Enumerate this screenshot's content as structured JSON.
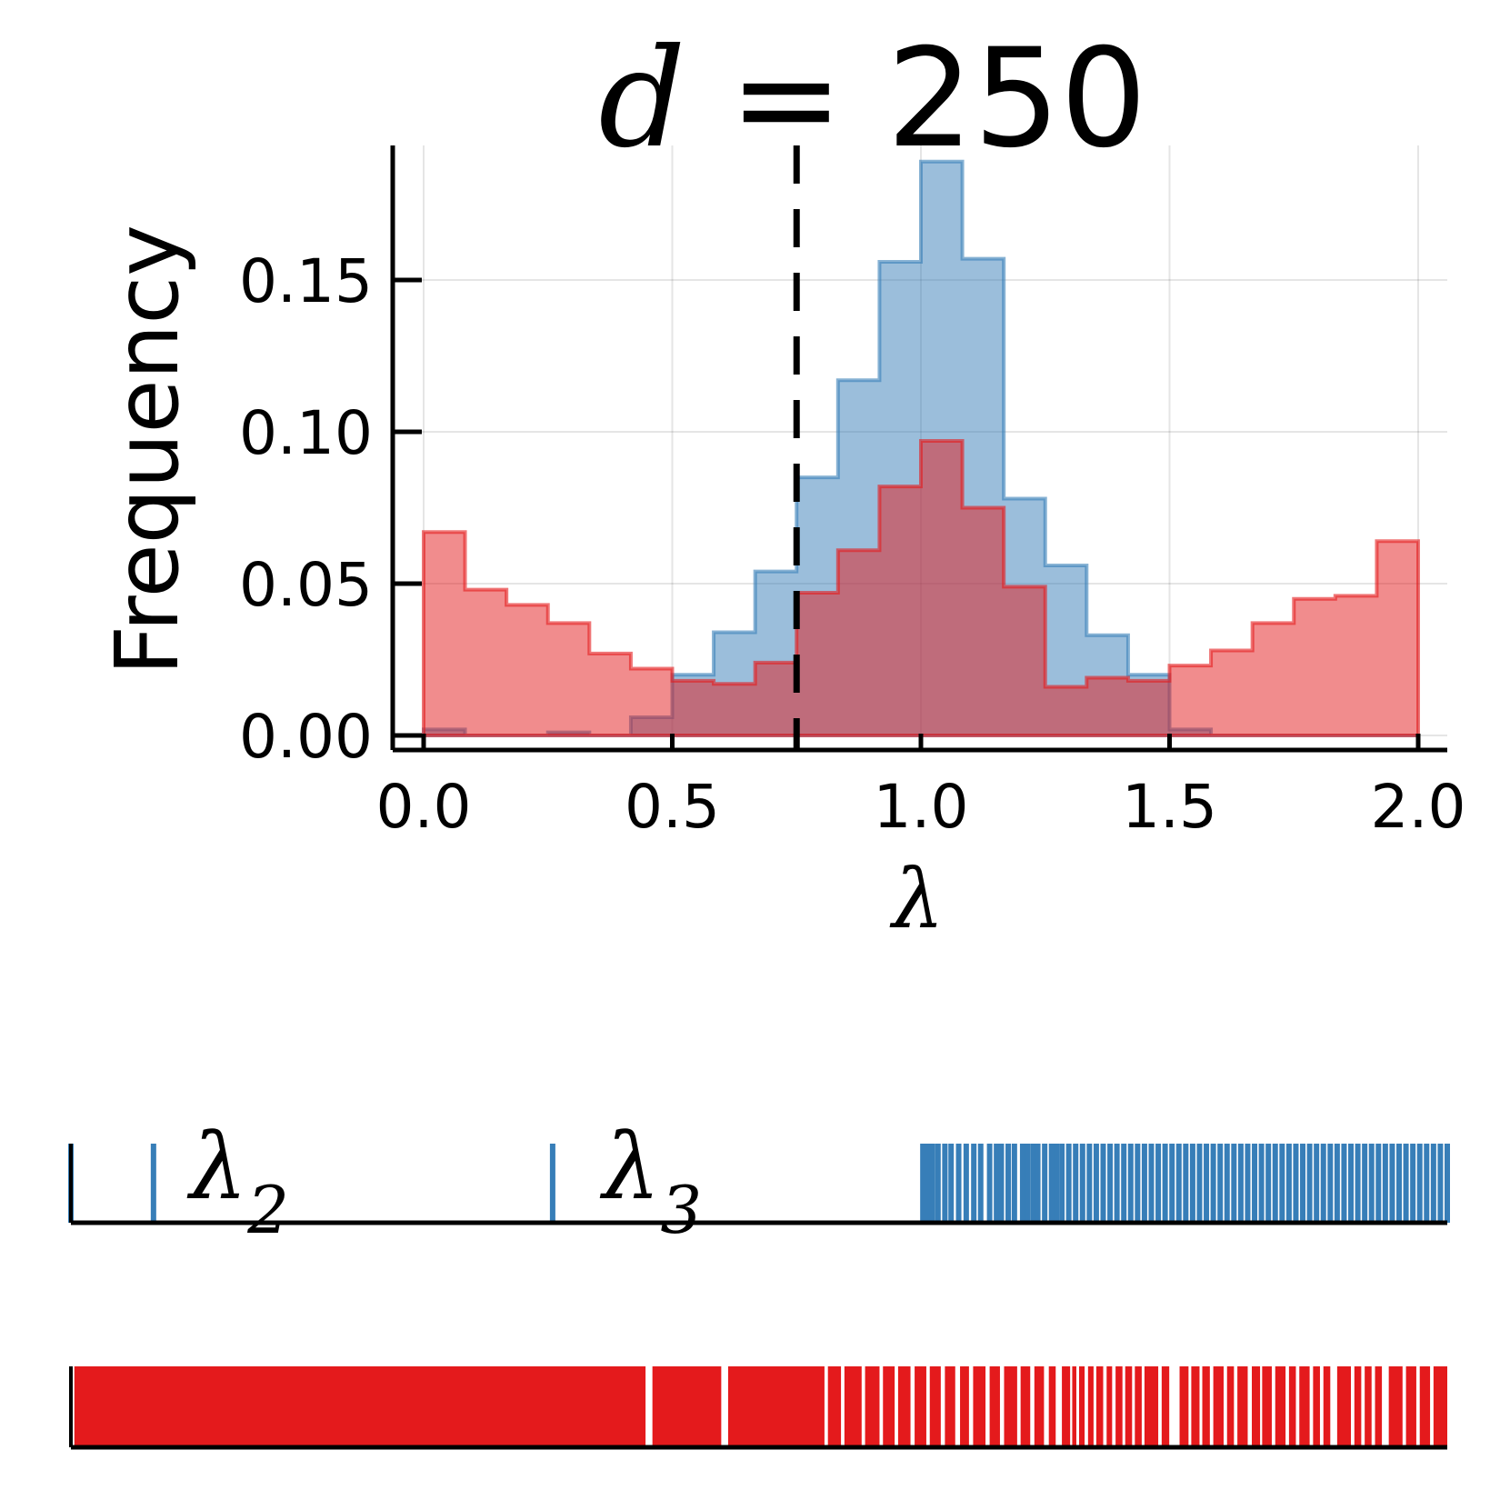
{
  "chart_data": [
    {
      "type": "histogram",
      "title_var": "d",
      "title_eq": " = ",
      "title_num": "250",
      "xlabel": "λ",
      "ylabel": "Frequency",
      "xlim": [
        -0.06,
        2.06
      ],
      "ylim": [
        -0.005,
        0.19
      ],
      "xticks": [
        0.0,
        0.5,
        1.0,
        1.5,
        2.0
      ],
      "xtick_labels": [
        "0.0",
        "0.5",
        "1.0",
        "1.5",
        "2.0"
      ],
      "yticks": [
        0.0,
        0.05,
        0.1,
        0.15
      ],
      "ytick_labels": [
        "0.00",
        "0.05",
        "0.10",
        "0.15"
      ],
      "grid": true,
      "vline": {
        "x": 0.75,
        "style": "dashed"
      },
      "bin_edges": [
        0.0,
        0.0833,
        0.1667,
        0.25,
        0.3333,
        0.4167,
        0.5,
        0.5833,
        0.6667,
        0.75,
        0.8333,
        0.9167,
        1.0,
        1.0833,
        1.1667,
        1.25,
        1.3333,
        1.4167,
        1.5,
        1.5833,
        1.6667,
        1.75,
        1.8333,
        1.9167,
        2.0
      ],
      "series": [
        {
          "color": "#377eb8",
          "values": [
            0.002,
            0.0,
            0.0,
            0.001,
            0.0,
            0.006,
            0.02,
            0.034,
            0.054,
            0.085,
            0.117,
            0.156,
            0.189,
            0.157,
            0.078,
            0.056,
            0.033,
            0.02,
            0.002,
            0.0,
            0.0,
            0.0,
            0.0,
            0.0
          ]
        },
        {
          "color": "#e41a1c",
          "values": [
            0.067,
            0.048,
            0.043,
            0.037,
            0.027,
            0.022,
            0.018,
            0.017,
            0.024,
            0.047,
            0.061,
            0.082,
            0.097,
            0.075,
            0.049,
            0.016,
            0.019,
            0.018,
            0.023,
            0.028,
            0.037,
            0.045,
            0.046,
            0.064
          ]
        }
      ]
    },
    {
      "type": "rug",
      "annotations": [
        {
          "text": "λ",
          "sub": "2",
          "x": 0.12
        },
        {
          "text": "λ",
          "sub": "3",
          "x": 0.72
        }
      ],
      "series": [
        {
          "color": "#377eb8",
          "points": [
            0.0,
            0.12,
            0.7,
            1.238,
            1.245,
            1.252,
            1.26,
            1.27,
            1.279,
            1.29,
            1.301,
            1.312,
            1.322,
            1.335,
            1.345,
            1.352,
            1.362,
            1.371,
            1.383,
            1.39,
            1.398,
            1.405,
            1.415,
            1.425,
            1.432,
            1.44,
            1.45,
            1.46,
            1.47,
            1.48,
            1.49,
            1.5,
            1.51,
            1.52,
            1.53,
            1.54,
            1.55,
            1.56,
            1.57,
            1.58,
            1.59,
            1.6,
            1.61,
            1.62,
            1.63,
            1.64,
            1.65,
            1.66,
            1.67,
            1.68,
            1.69,
            1.7,
            1.71,
            1.72,
            1.73,
            1.74,
            1.75,
            1.76,
            1.77,
            1.78,
            1.79,
            1.8,
            1.81,
            1.82,
            1.83,
            1.84,
            1.85,
            1.86,
            1.87,
            1.88,
            1.89,
            1.9,
            1.91,
            1.92,
            1.93,
            1.94,
            1.95,
            1.96,
            1.97,
            1.98,
            1.99,
            2.0
          ]
        },
        {
          "color": "#e41a1c",
          "points_dense": [
            [
              0.005,
              0.835
            ],
            [
              0.845,
              0.945
            ],
            [
              0.955,
              1.095
            ],
            [
              1.1,
              1.119
            ],
            [
              1.124,
              1.149
            ],
            [
              1.154,
              1.175
            ],
            [
              1.18,
              1.197
            ],
            [
              1.202,
              1.22
            ],
            [
              1.226,
              1.243
            ],
            [
              1.248,
              1.264
            ],
            [
              1.27,
              1.285
            ],
            [
              1.292,
              1.305
            ],
            [
              1.311,
              1.329
            ],
            [
              1.335,
              1.35
            ],
            [
              1.356,
              1.375
            ],
            [
              1.38,
              1.394
            ],
            [
              1.4,
              1.414
            ],
            [
              1.421,
              1.431
            ],
            [
              1.44,
              1.452
            ],
            [
              1.455,
              1.461
            ],
            [
              1.465,
              1.473
            ],
            [
              1.478,
              1.486
            ],
            [
              1.49,
              1.5
            ],
            [
              1.505,
              1.513
            ],
            [
              1.518,
              1.528
            ],
            [
              1.532,
              1.542
            ],
            [
              1.546,
              1.556
            ],
            [
              1.56,
              1.58
            ],
            [
              1.585,
              1.596
            ],
            [
              1.611,
              1.624
            ],
            [
              1.628,
              1.64
            ],
            [
              1.644,
              1.655
            ],
            [
              1.66,
              1.675
            ],
            [
              1.68,
              1.69
            ],
            [
              1.695,
              1.71
            ],
            [
              1.716,
              1.728
            ],
            [
              1.731,
              1.745
            ],
            [
              1.75,
              1.765
            ],
            [
              1.77,
              1.78
            ],
            [
              1.785,
              1.8
            ],
            [
              1.805,
              1.815
            ],
            [
              1.82,
              1.83
            ],
            [
              1.84,
              1.86
            ],
            [
              1.865,
              1.875
            ],
            [
              1.88,
              1.89
            ],
            [
              1.895,
              1.905
            ],
            [
              1.915,
              1.935
            ],
            [
              1.94,
              1.955
            ],
            [
              1.96,
              1.975
            ],
            [
              1.98,
              2.0
            ]
          ]
        }
      ]
    }
  ]
}
